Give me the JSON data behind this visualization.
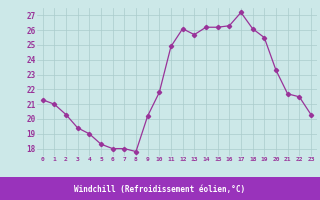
{
  "x": [
    0,
    1,
    2,
    3,
    4,
    5,
    6,
    7,
    8,
    9,
    10,
    11,
    12,
    13,
    14,
    15,
    16,
    17,
    18,
    19,
    20,
    21,
    22,
    23
  ],
  "y": [
    21.3,
    21.0,
    20.3,
    19.4,
    19.0,
    18.3,
    18.0,
    18.0,
    17.8,
    20.2,
    21.8,
    24.9,
    26.1,
    25.7,
    26.2,
    26.2,
    26.3,
    27.2,
    26.1,
    25.5,
    23.3,
    21.7,
    21.5,
    20.3
  ],
  "line_color": "#993399",
  "marker": "D",
  "markersize": 2.2,
  "linewidth": 0.9,
  "bg_color": "#cce8e8",
  "plot_bg_color": "#cce8e8",
  "bottom_band_color": "#9933bb",
  "grid_color": "#aacccc",
  "xlabel": "Windchill (Refroidissement éolien,°C)",
  "xlabel_color": "#ffffff",
  "tick_color": "#993399",
  "xtick_color": "#993399",
  "ylabel_ticks": [
    18,
    19,
    20,
    21,
    22,
    23,
    24,
    25,
    26,
    27
  ],
  "xlim": [
    -0.5,
    23.5
  ],
  "ylim": [
    17.5,
    27.5
  ],
  "xtick_labels": [
    "0",
    "1",
    "2",
    "3",
    "4",
    "5",
    "6",
    "7",
    "8",
    "9",
    "10",
    "11",
    "12",
    "13",
    "14",
    "15",
    "16",
    "17",
    "18",
    "19",
    "20",
    "21",
    "22",
    "23"
  ]
}
